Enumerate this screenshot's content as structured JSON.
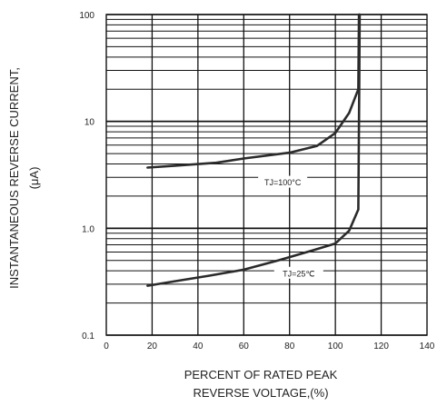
{
  "chart_data": {
    "type": "line",
    "xlabel_lines": [
      "PERCENT OF RATED PEAK",
      "REVERSE VOLTAGE,(%)"
    ],
    "ylabel_lines": [
      "INSTANTANEOUS REVERSE CURRENT,",
      "(μA)"
    ],
    "x_ticks": [
      "0",
      "20",
      "40",
      "60",
      "80",
      "100",
      "120",
      "140"
    ],
    "y_ticks": [
      "100",
      "10",
      "1.0",
      "0.1"
    ],
    "xlim": [
      0,
      140
    ],
    "ylim": [
      0.1,
      100
    ],
    "y_scale": "log",
    "grid": true,
    "series": [
      {
        "name": "TJ=100°C",
        "x": [
          18,
          30,
          48,
          60,
          80,
          92,
          100,
          106,
          110,
          110.3
        ],
        "y": [
          3.7,
          3.85,
          4.1,
          4.5,
          5.1,
          5.9,
          7.8,
          12,
          20,
          100
        ]
      },
      {
        "name": "TJ=25℃",
        "x": [
          18,
          30,
          45,
          60,
          75,
          90,
          100,
          106,
          110,
          110.4,
          110.6
        ],
        "y": [
          0.29,
          0.32,
          0.36,
          0.41,
          0.5,
          0.62,
          0.72,
          0.95,
          1.5,
          20,
          100
        ]
      }
    ]
  }
}
